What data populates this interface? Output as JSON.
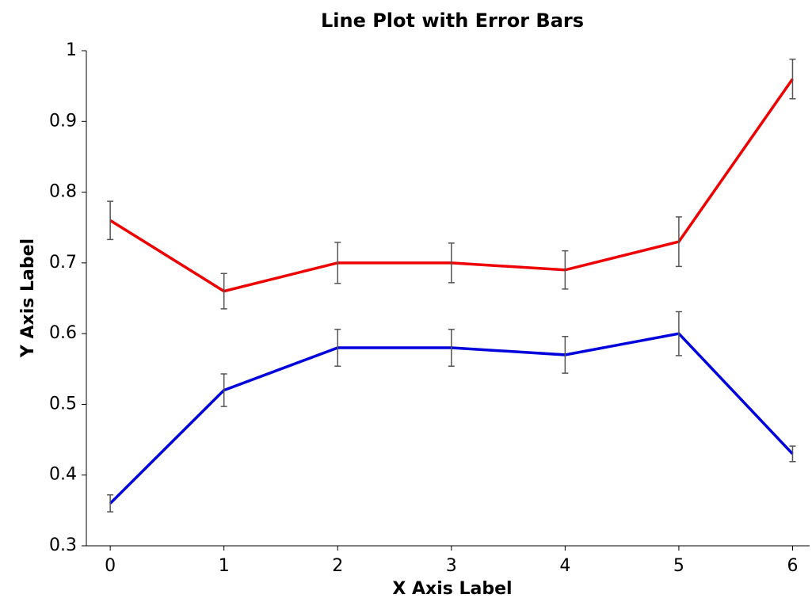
{
  "chart_data": {
    "type": "line",
    "title": "Line Plot with Error Bars",
    "xlabel": "X Axis Label",
    "ylabel": "Y Axis Label",
    "x": [
      0,
      1,
      2,
      3,
      4,
      5,
      6
    ],
    "series": [
      {
        "color": "#ee0000",
        "values": [
          0.76,
          0.66,
          0.7,
          0.7,
          0.69,
          0.73,
          0.96
        ],
        "errors": [
          0.027,
          0.025,
          0.029,
          0.028,
          0.027,
          0.035,
          0.028
        ]
      },
      {
        "color": "#0000dd",
        "values": [
          0.36,
          0.52,
          0.58,
          0.58,
          0.57,
          0.6,
          0.43
        ],
        "errors": [
          0.012,
          0.023,
          0.026,
          0.026,
          0.026,
          0.031,
          0.011
        ]
      }
    ],
    "error_color": "#555555",
    "xlim": [
      -0.21,
      6.15
    ],
    "xticks": [
      0,
      1,
      2,
      3,
      4,
      5,
      6
    ],
    "ylim": [
      0.3,
      1
    ],
    "yticks": [
      0.3,
      0.4,
      0.5,
      0.6,
      0.7,
      0.8,
      0.9,
      1
    ],
    "grid": false
  }
}
